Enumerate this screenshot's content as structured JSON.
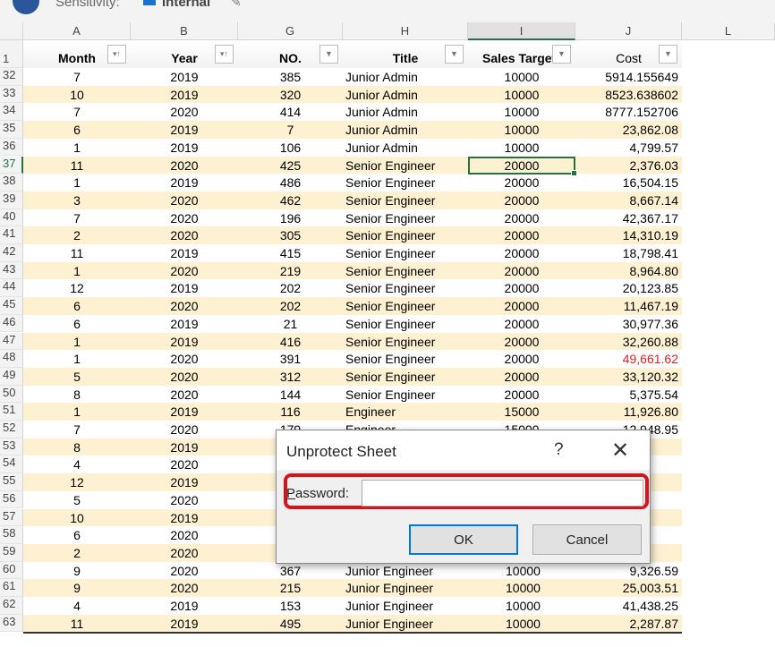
{
  "topbar": {
    "sensitivity_label": "Sensitivity:",
    "sensitivity_value": "Internal"
  },
  "columns": [
    "A",
    "B",
    "G",
    "H",
    "I",
    "J",
    "L"
  ],
  "selected_column": "I",
  "headers": [
    "Month",
    "Year",
    "NO.",
    "Title",
    "Sales Target",
    "Cost"
  ],
  "header_row_number": "1",
  "selected_cell": "I37",
  "rows": [
    {
      "n": "32",
      "a": "7",
      "b": "2019",
      "g": "385",
      "h": "Junior Admin",
      "i": "10000",
      "j": "5914.155649"
    },
    {
      "n": "33",
      "a": "10",
      "b": "2019",
      "g": "320",
      "h": "Junior Admin",
      "i": "10000",
      "j": "8523.638602"
    },
    {
      "n": "34",
      "a": "7",
      "b": "2020",
      "g": "414",
      "h": "Junior Admin",
      "i": "10000",
      "j": "8777.152706"
    },
    {
      "n": "35",
      "a": "6",
      "b": "2019",
      "g": "7",
      "h": "Junior Admin",
      "i": "10000",
      "j": "23,862.08"
    },
    {
      "n": "36",
      "a": "1",
      "b": "2019",
      "g": "106",
      "h": "Junior Admin",
      "i": "10000",
      "j": "4,799.57"
    },
    {
      "n": "37",
      "a": "11",
      "b": "2020",
      "g": "425",
      "h": "Senior Engineer",
      "i": "20000",
      "j": "2,376.03"
    },
    {
      "n": "38",
      "a": "1",
      "b": "2019",
      "g": "486",
      "h": "Senior Engineer",
      "i": "20000",
      "j": "16,504.15"
    },
    {
      "n": "39",
      "a": "3",
      "b": "2020",
      "g": "462",
      "h": "Senior Engineer",
      "i": "20000",
      "j": "8,667.14"
    },
    {
      "n": "40",
      "a": "7",
      "b": "2020",
      "g": "196",
      "h": "Senior Engineer",
      "i": "20000",
      "j": "42,367.17"
    },
    {
      "n": "41",
      "a": "2",
      "b": "2020",
      "g": "305",
      "h": "Senior Engineer",
      "i": "20000",
      "j": "14,310.19"
    },
    {
      "n": "42",
      "a": "11",
      "b": "2019",
      "g": "415",
      "h": "Senior Engineer",
      "i": "20000",
      "j": "18,798.41"
    },
    {
      "n": "43",
      "a": "1",
      "b": "2020",
      "g": "219",
      "h": "Senior Engineer",
      "i": "20000",
      "j": "8,964.80"
    },
    {
      "n": "44",
      "a": "12",
      "b": "2019",
      "g": "202",
      "h": "Senior Engineer",
      "i": "20000",
      "j": "20,123.85"
    },
    {
      "n": "45",
      "a": "6",
      "b": "2020",
      "g": "202",
      "h": "Senior Engineer",
      "i": "20000",
      "j": "11,467.19"
    },
    {
      "n": "46",
      "a": "6",
      "b": "2019",
      "g": "21",
      "h": "Senior Engineer",
      "i": "20000",
      "j": "30,977.36"
    },
    {
      "n": "47",
      "a": "1",
      "b": "2019",
      "g": "416",
      "h": "Senior Engineer",
      "i": "20000",
      "j": "32,260.88"
    },
    {
      "n": "48",
      "a": "1",
      "b": "2020",
      "g": "391",
      "h": "Senior Engineer",
      "i": "20000",
      "j": "49,661.62",
      "red": true
    },
    {
      "n": "49",
      "a": "5",
      "b": "2020",
      "g": "312",
      "h": "Senior Engineer",
      "i": "20000",
      "j": "33,120.32"
    },
    {
      "n": "50",
      "a": "8",
      "b": "2020",
      "g": "144",
      "h": "Senior Engineer",
      "i": "20000",
      "j": "5,375.54"
    },
    {
      "n": "51",
      "a": "1",
      "b": "2019",
      "g": "116",
      "h": "Engineer",
      "i": "15000",
      "j": "11,926.80"
    },
    {
      "n": "52",
      "a": "7",
      "b": "2020",
      "g": "179",
      "h": "Engineer",
      "i": "15000",
      "j": "12,948.95"
    },
    {
      "n": "53",
      "a": "8",
      "b": "2019",
      "g": "",
      "h": "",
      "i": "",
      "j": ""
    },
    {
      "n": "54",
      "a": "4",
      "b": "2020",
      "g": "",
      "h": "",
      "i": "",
      "j": ""
    },
    {
      "n": "55",
      "a": "12",
      "b": "2019",
      "g": "",
      "h": "",
      "i": "",
      "j": ""
    },
    {
      "n": "56",
      "a": "5",
      "b": "2020",
      "g": "",
      "h": "",
      "i": "",
      "j": ""
    },
    {
      "n": "57",
      "a": "10",
      "b": "2019",
      "g": "",
      "h": "",
      "i": "",
      "j": ""
    },
    {
      "n": "58",
      "a": "6",
      "b": "2020",
      "g": "",
      "h": "",
      "i": "",
      "j": ""
    },
    {
      "n": "59",
      "a": "2",
      "b": "2020",
      "g": "",
      "h": "",
      "i": "",
      "j": ""
    },
    {
      "n": "60",
      "a": "9",
      "b": "2020",
      "g": "367",
      "h": "Junior Engineer",
      "i": "10000",
      "j": "9,326.59"
    },
    {
      "n": "61",
      "a": "9",
      "b": "2020",
      "g": "215",
      "h": "Junior Engineer",
      "i": "10000",
      "j": "25,003.51"
    },
    {
      "n": "62",
      "a": "4",
      "b": "2019",
      "g": "153",
      "h": "Junior Engineer",
      "i": "10000",
      "j": "41,438.25"
    },
    {
      "n": "63",
      "a": "11",
      "b": "2019",
      "g": "495",
      "h": "Junior Engineer",
      "i": "10000",
      "j": "2,287.87"
    }
  ],
  "colors": {
    "stripe": "#fdf1d2",
    "accent": "#217346",
    "highlight": "#d8141a",
    "negative": "#e02020"
  },
  "dialog": {
    "title": "Unprotect Sheet",
    "help": "?",
    "password_label_prefix": "P",
    "password_label_rest": "assword:",
    "password_value": "",
    "ok": "OK",
    "cancel": "Cancel"
  }
}
